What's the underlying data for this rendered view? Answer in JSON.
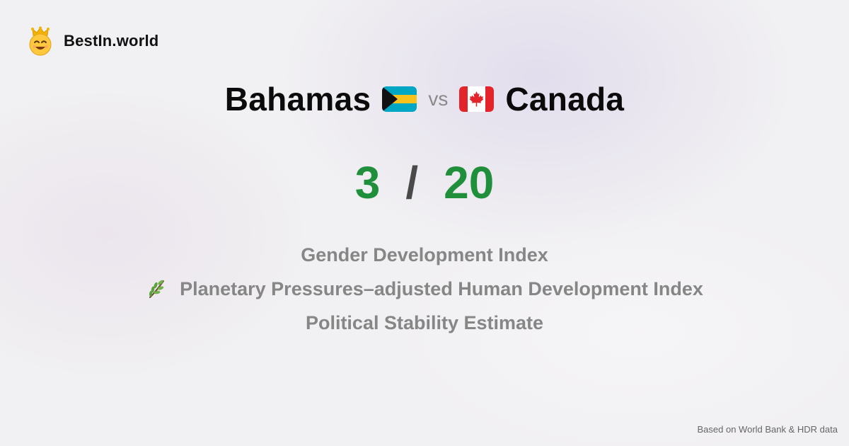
{
  "brand": {
    "name": "BestIn.world",
    "logo_icon": "crowned-smiley-icon"
  },
  "comparison": {
    "left_country": "Bahamas",
    "left_flag": "bahamas-flag-icon",
    "vs_label": "vs",
    "right_country": "Canada",
    "right_flag": "canada-flag-icon"
  },
  "score": {
    "left": "3",
    "separator": "/",
    "right": "20",
    "color": "#1f8f3c"
  },
  "metrics": [
    {
      "label": "Gender Development Index",
      "icon": ""
    },
    {
      "label": "Planetary Pressures–adjusted Human Development Index",
      "icon": "herb-sprig-icon"
    },
    {
      "label": "Political Stability Estimate",
      "icon": ""
    }
  ],
  "footer": {
    "source_note": "Based on World Bank & HDR data"
  }
}
